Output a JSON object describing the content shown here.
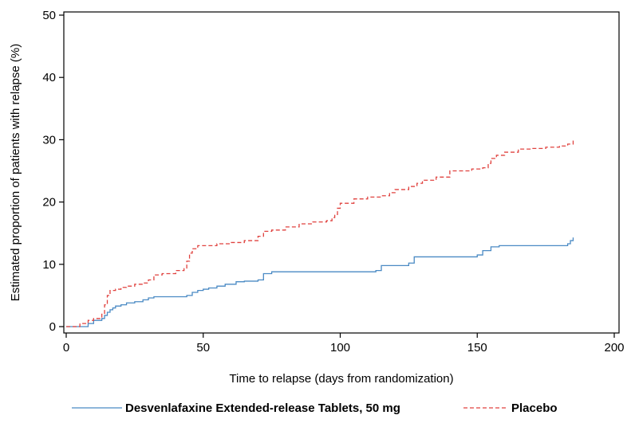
{
  "chart_data": {
    "type": "line",
    "xlabel": "Time to relapse (days from randomization)",
    "ylabel": "Estimated proportion of patients with relapse (%)",
    "xlim": [
      0,
      200
    ],
    "ylim": [
      0,
      50
    ],
    "xticks": [
      0,
      50,
      100,
      150,
      200
    ],
    "yticks": [
      0,
      10,
      20,
      30,
      40,
      50
    ],
    "grid": false,
    "legend_position": "bottom",
    "step": true,
    "series": [
      {
        "name": "Desvenlafaxine Extended-release Tablets, 50 mg",
        "color": "#4a8ac4",
        "line_style": "solid",
        "x": [
          0,
          8,
          10,
          13,
          14,
          15,
          16,
          17,
          18,
          20,
          22,
          25,
          28,
          30,
          32,
          35,
          40,
          44,
          46,
          48,
          50,
          52,
          55,
          58,
          62,
          65,
          70,
          72,
          75,
          80,
          90,
          100,
          110,
          113,
          115,
          120,
          125,
          127,
          130,
          140,
          150,
          152,
          155,
          158,
          160,
          170,
          180,
          183,
          184,
          185
        ],
        "y": [
          0,
          0.5,
          1.0,
          1.3,
          1.8,
          2.3,
          2.7,
          3.0,
          3.3,
          3.5,
          3.8,
          4.0,
          4.3,
          4.6,
          4.8,
          4.8,
          4.8,
          5.0,
          5.5,
          5.8,
          6.0,
          6.2,
          6.5,
          6.8,
          7.2,
          7.3,
          7.5,
          8.5,
          8.8,
          8.8,
          8.8,
          8.8,
          8.8,
          9.0,
          9.8,
          9.8,
          10.2,
          11.2,
          11.2,
          11.2,
          11.5,
          12.2,
          12.8,
          13.0,
          13.0,
          13.0,
          13.0,
          13.3,
          13.8,
          14.3
        ]
      },
      {
        "name": "Placebo",
        "color": "#e0423f",
        "line_style": "dashed",
        "x": [
          0,
          5,
          8,
          10,
          13,
          14,
          15,
          16,
          18,
          20,
          22,
          25,
          28,
          30,
          32,
          35,
          40,
          43,
          44,
          45,
          46,
          48,
          55,
          60,
          65,
          70,
          72,
          75,
          80,
          85,
          90,
          95,
          97,
          98,
          99,
          100,
          105,
          110,
          115,
          118,
          120,
          125,
          128,
          130,
          135,
          140,
          148,
          152,
          154,
          155,
          157,
          160,
          165,
          170,
          175,
          180,
          183,
          185
        ],
        "y": [
          0,
          0.5,
          1.0,
          1.3,
          2.0,
          3.5,
          5.0,
          5.8,
          6.0,
          6.3,
          6.5,
          6.8,
          7.0,
          7.5,
          8.3,
          8.5,
          9.0,
          9.3,
          10.5,
          11.8,
          12.5,
          13.0,
          13.3,
          13.5,
          13.8,
          14.5,
          15.3,
          15.5,
          16.0,
          16.5,
          16.8,
          17.0,
          17.5,
          18.0,
          19.0,
          19.8,
          20.5,
          20.8,
          21.0,
          21.5,
          22.0,
          22.5,
          23.0,
          23.5,
          24.0,
          25.0,
          25.3,
          25.5,
          26.2,
          27.0,
          27.5,
          28.0,
          28.5,
          28.6,
          28.8,
          29.0,
          29.3,
          30.0
        ]
      }
    ]
  }
}
